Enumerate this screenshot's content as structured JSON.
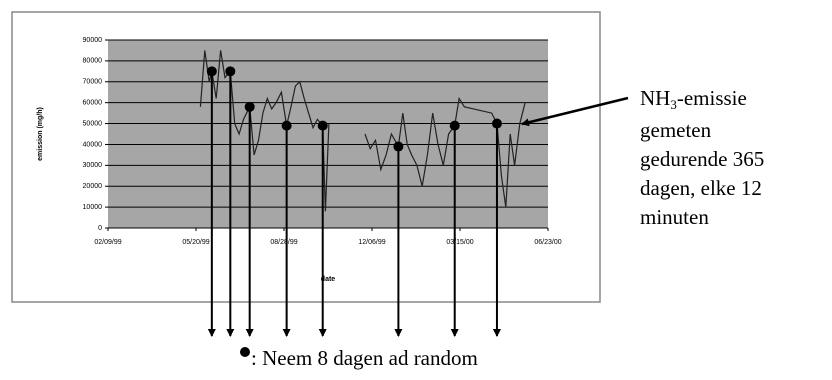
{
  "chart_data": {
    "type": "line",
    "x_label": "date",
    "y_label": "emission (mg/h)",
    "x": [
      "05/25/99",
      "05/30/99",
      "06/04/99",
      "06/07/99",
      "06/12/99",
      "06/17/99",
      "06/22/99",
      "06/28/99",
      "07/03/99",
      "07/08/99",
      "07/13/99",
      "07/20/99",
      "07/25/99",
      "07/30/99",
      "08/04/99",
      "08/09/99",
      "08/14/99",
      "08/19/99",
      "08/25/99",
      "08/31/99",
      "09/05/99",
      "09/10/99",
      "09/15/99",
      "09/20/99",
      "09/25/99",
      "09/30/99",
      "10/05/99",
      "10/11/99",
      "10/14/99",
      "10/18/99",
      "11/10/99",
      "11/28/99",
      "12/04/99",
      "12/10/99",
      "12/16/99",
      "12/22/99",
      "12/28/99",
      "01/05/00",
      "01/10/00",
      "01/15/00",
      "01/20/00",
      "01/26/00",
      "02/01/00",
      "02/07/00",
      "02/13/00",
      "02/19/00",
      "02/25/00",
      "03/02/00",
      "03/09/00",
      "03/14/00",
      "03/20/00",
      "04/20/00",
      "04/26/00",
      "05/01/00",
      "05/06/00",
      "05/11/00",
      "05/16/00",
      "05/22/00",
      "05/28/00"
    ],
    "series": [
      {
        "color": "#222222",
        "values": [
          58000,
          85000,
          70000,
          75000,
          62000,
          85000,
          72000,
          75000,
          50000,
          45000,
          52000,
          58000,
          35000,
          42000,
          55000,
          62000,
          57000,
          60000,
          65000,
          49000,
          58000,
          68000,
          70000,
          62000,
          55000,
          48000,
          52000,
          49000,
          8000,
          50000,
          null,
          45000,
          38000,
          42000,
          28000,
          35000,
          45000,
          39000,
          55000,
          40000,
          35000,
          30000,
          20000,
          35000,
          55000,
          40000,
          30000,
          45000,
          49000,
          62000,
          58000,
          55000,
          50000,
          25000,
          10000,
          45000,
          30000,
          50000,
          60000
        ]
      },
      {
        "name": ": Neem 8 dagen ad random",
        "color": "#000000",
        "x": [
          "06/07/99",
          "06/28/99",
          "07/20/99",
          "08/31/99",
          "10/11/99",
          "01/05/00",
          "03/09/00",
          "04/26/00"
        ],
        "values": [
          75000,
          75000,
          58000,
          49000,
          49000,
          39000,
          49000,
          50000
        ]
      }
    ],
    "xlim": [
      "02/09/99",
      "06/23/00"
    ],
    "xticks": [
      "02/09/99",
      "05/20/99",
      "08/28/99",
      "12/06/99",
      "03/15/00",
      "06/23/00"
    ],
    "ylim": [
      0,
      90000
    ],
    "yticks": [
      0,
      10000,
      20000,
      30000,
      40000,
      50000,
      60000,
      70000,
      80000,
      90000
    ],
    "grid": true,
    "annotation": {
      "title_parts": [
        "NH",
        "3",
        "-emissie"
      ],
      "lines": [
        "gemeten",
        "gedurende 365",
        "dagen, elke 12",
        "minuten"
      ]
    }
  }
}
